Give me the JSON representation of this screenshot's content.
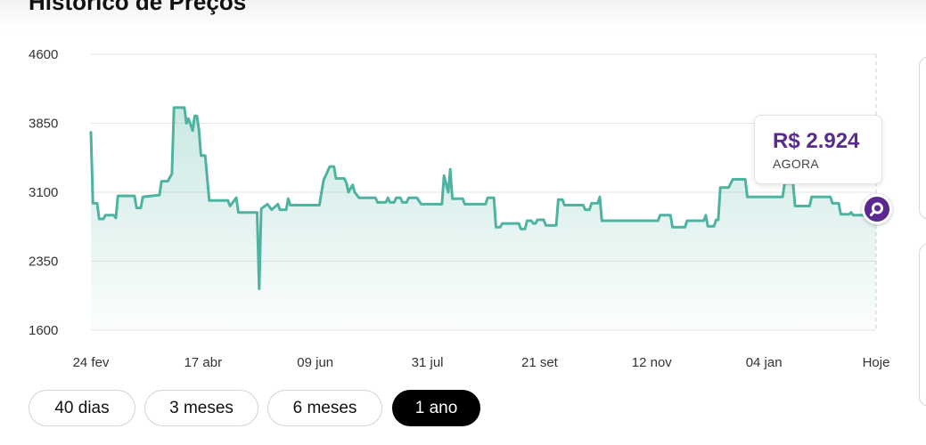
{
  "header": {
    "title": "Histórico de Preços"
  },
  "colors": {
    "line": "#4fb3a2",
    "accent": "#5b2a91",
    "active_tab_bg": "#000000"
  },
  "tooltip": {
    "price": "R$ 2.924",
    "label": "AGORA"
  },
  "marker": {
    "icon": "search-icon"
  },
  "tabs": [
    {
      "label": "40 dias",
      "active": false
    },
    {
      "label": "3 meses",
      "active": false
    },
    {
      "label": "6 meses",
      "active": false
    },
    {
      "label": "1 ano",
      "active": true
    }
  ],
  "chart_data": {
    "type": "area",
    "ylim": [
      1600,
      4600
    ],
    "y_ticks": [
      "4600",
      "3850",
      "3100",
      "2350",
      "1600"
    ],
    "x_ticks": [
      "24 fev",
      "17 abr",
      "09 jun",
      "31 jul",
      "21 set",
      "12 nov",
      "04 jan",
      "Hoje"
    ],
    "grid": true,
    "series": [
      {
        "values": [
          [
            0,
            3750
          ],
          [
            0.5,
            2980
          ],
          [
            1.5,
            2980
          ],
          [
            2,
            2810
          ],
          [
            3,
            2810
          ],
          [
            3.5,
            2850
          ],
          [
            5.5,
            2850
          ],
          [
            6,
            2820
          ],
          [
            6.5,
            3060
          ],
          [
            10.5,
            3060
          ],
          [
            11,
            2930
          ],
          [
            12,
            2930
          ],
          [
            12.5,
            3050
          ],
          [
            16.5,
            3070
          ],
          [
            17,
            3220
          ],
          [
            18.5,
            3220
          ],
          [
            19.5,
            3300
          ],
          [
            20,
            4020
          ],
          [
            22.5,
            4020
          ],
          [
            23,
            3850
          ],
          [
            23.5,
            3900
          ],
          [
            24.5,
            3770
          ],
          [
            25,
            3930
          ],
          [
            25.5,
            3930
          ],
          [
            26,
            3780
          ],
          [
            26.5,
            3500
          ],
          [
            27.5,
            3500
          ],
          [
            28.5,
            3010
          ],
          [
            33,
            3010
          ],
          [
            33.5,
            2950
          ],
          [
            35,
            3040
          ],
          [
            35.5,
            2880
          ],
          [
            40,
            2880
          ],
          [
            40.5,
            2050
          ],
          [
            41,
            2920
          ],
          [
            42.5,
            2970
          ],
          [
            43.5,
            2910
          ],
          [
            45,
            2970
          ],
          [
            45.5,
            2910
          ],
          [
            47,
            2910
          ],
          [
            47.5,
            3030
          ],
          [
            48,
            2960
          ],
          [
            50.5,
            2960
          ],
          [
            51,
            2960
          ],
          [
            53,
            2960
          ],
          [
            55,
            2960
          ],
          [
            56,
            3230
          ],
          [
            57.5,
            3380
          ],
          [
            58.5,
            3380
          ],
          [
            59,
            3250
          ],
          [
            60,
            3250
          ],
          [
            61,
            3250
          ],
          [
            61.5,
            3200
          ],
          [
            62,
            3100
          ],
          [
            63,
            3180
          ],
          [
            63.5,
            3100
          ],
          [
            64.5,
            3040
          ],
          [
            68.5,
            3040
          ],
          [
            69,
            2990
          ],
          [
            71,
            2990
          ],
          [
            71.5,
            3040
          ],
          [
            72,
            2990
          ],
          [
            73,
            2990
          ],
          [
            73.5,
            3040
          ],
          [
            74.5,
            3040
          ],
          [
            75,
            2990
          ],
          [
            76,
            2990
          ],
          [
            76.5,
            3040
          ],
          [
            78.5,
            3040
          ],
          [
            79.5,
            2970
          ],
          [
            83.5,
            2970
          ],
          [
            84.5,
            2970
          ],
          [
            85,
            3280
          ],
          [
            86,
            3100
          ],
          [
            86.5,
            3350
          ],
          [
            87,
            3030
          ],
          [
            89.5,
            3030
          ],
          [
            90,
            2970
          ],
          [
            95,
            2970
          ],
          [
            95.5,
            3040
          ],
          [
            97,
            3040
          ],
          [
            97.5,
            2720
          ],
          [
            98.5,
            2720
          ],
          [
            99,
            2760
          ],
          [
            103,
            2760
          ],
          [
            103.5,
            2700
          ],
          [
            104.5,
            2700
          ],
          [
            105,
            2790
          ],
          [
            106,
            2790
          ],
          [
            106.5,
            2760
          ],
          [
            107,
            2760
          ],
          [
            107.5,
            2800
          ],
          [
            109,
            2800
          ],
          [
            109.5,
            2740
          ],
          [
            112,
            2740
          ],
          [
            112.5,
            3020
          ],
          [
            113.5,
            3020
          ],
          [
            114,
            2960
          ],
          [
            118.5,
            2960
          ],
          [
            119,
            2910
          ],
          [
            120,
            2910
          ],
          [
            120.5,
            2980
          ],
          [
            122,
            2980
          ],
          [
            122.5,
            3050
          ],
          [
            123,
            2790
          ],
          [
            136.5,
            2790
          ],
          [
            137,
            2850
          ],
          [
            139.5,
            2850
          ],
          [
            140,
            2720
          ],
          [
            143,
            2720
          ],
          [
            143.5,
            2790
          ],
          [
            147.5,
            2790
          ],
          [
            148,
            2850
          ],
          [
            148.5,
            2730
          ],
          [
            150,
            2730
          ],
          [
            150.5,
            2800
          ],
          [
            151,
            2800
          ],
          [
            151.5,
            3150
          ],
          [
            153.5,
            3150
          ],
          [
            154.5,
            3240
          ],
          [
            157.5,
            3240
          ],
          [
            158,
            3050
          ],
          [
            166.5,
            3050
          ],
          [
            167,
            3200
          ],
          [
            169,
            3200
          ],
          [
            169.5,
            2950
          ],
          [
            173,
            2950
          ],
          [
            173.5,
            3050
          ],
          [
            178,
            3050
          ],
          [
            178.5,
            2980
          ],
          [
            180,
            2980
          ],
          [
            180.5,
            2860
          ],
          [
            182.5,
            2860
          ],
          [
            183,
            2880
          ],
          [
            183.5,
            2850
          ],
          [
            187,
            2850
          ],
          [
            187.5,
            2790
          ],
          [
            189,
            2790
          ]
        ]
      }
    ]
  }
}
